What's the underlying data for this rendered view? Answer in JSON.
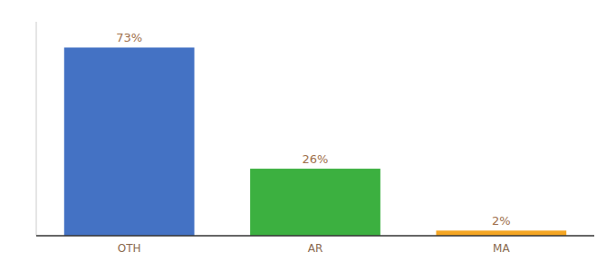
{
  "chart_data": {
    "type": "bar",
    "categories": [
      "OTH",
      "AR",
      "MA"
    ],
    "values": [
      73,
      26,
      2
    ],
    "value_labels": [
      "73%",
      "26%",
      "2%"
    ],
    "colors": [
      "#4472c4",
      "#3cb040",
      "#f5a623"
    ],
    "ylim": [
      0,
      83
    ],
    "data_labels": true,
    "tick_labels": "x",
    "grid": false
  }
}
